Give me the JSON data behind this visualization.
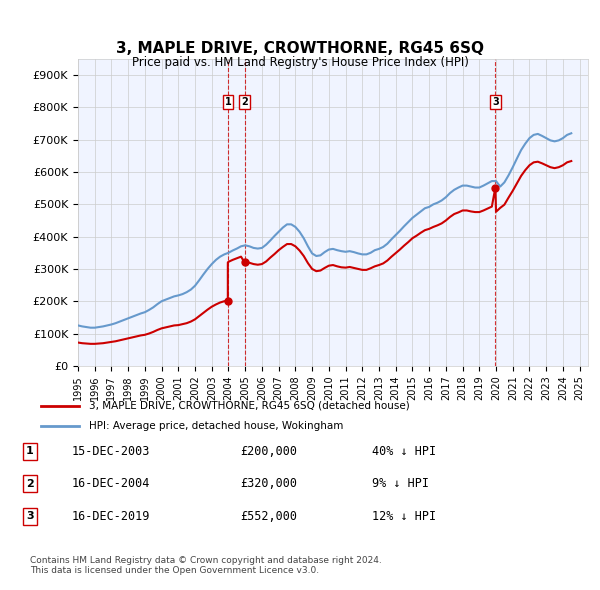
{
  "title": "3, MAPLE DRIVE, CROWTHORNE, RG45 6SQ",
  "subtitle": "Price paid vs. HM Land Registry's House Price Index (HPI)",
  "ylabel_ticks": [
    "£0",
    "£100K",
    "£200K",
    "£300K",
    "£400K",
    "£500K",
    "£600K",
    "£700K",
    "£800K",
    "£900K"
  ],
  "ytick_values": [
    0,
    100000,
    200000,
    300000,
    400000,
    500000,
    600000,
    700000,
    800000,
    900000
  ],
  "ylim": [
    0,
    950000
  ],
  "xlim_start": 1995.0,
  "xlim_end": 2025.5,
  "hpi_color": "#6699cc",
  "price_color": "#cc0000",
  "dashed_line_color": "#cc0000",
  "background_color": "#f0f4ff",
  "grid_color": "#cccccc",
  "transactions": [
    {
      "year": 2003.96,
      "price": 200000,
      "label": "1"
    },
    {
      "year": 2004.96,
      "price": 320000,
      "label": "2"
    },
    {
      "year": 2019.96,
      "price": 552000,
      "label": "3"
    }
  ],
  "legend_property_label": "3, MAPLE DRIVE, CROWTHORNE, RG45 6SQ (detached house)",
  "legend_hpi_label": "HPI: Average price, detached house, Wokingham",
  "table_rows": [
    {
      "num": "1",
      "date": "15-DEC-2003",
      "price": "£200,000",
      "change": "40% ↓ HPI"
    },
    {
      "num": "2",
      "date": "16-DEC-2004",
      "price": "£320,000",
      "change": "9% ↓ HPI"
    },
    {
      "num": "3",
      "date": "16-DEC-2019",
      "price": "£552,000",
      "change": "12% ↓ HPI"
    }
  ],
  "footnote": "Contains HM Land Registry data © Crown copyright and database right 2024.\nThis data is licensed under the Open Government Licence v3.0.",
  "hpi_data_x": [
    1995.0,
    1995.25,
    1995.5,
    1995.75,
    1996.0,
    1996.25,
    1996.5,
    1996.75,
    1997.0,
    1997.25,
    1997.5,
    1997.75,
    1998.0,
    1998.25,
    1998.5,
    1998.75,
    1999.0,
    1999.25,
    1999.5,
    1999.75,
    2000.0,
    2000.25,
    2000.5,
    2000.75,
    2001.0,
    2001.25,
    2001.5,
    2001.75,
    2002.0,
    2002.25,
    2002.5,
    2002.75,
    2003.0,
    2003.25,
    2003.5,
    2003.75,
    2004.0,
    2004.25,
    2004.5,
    2004.75,
    2005.0,
    2005.25,
    2005.5,
    2005.75,
    2006.0,
    2006.25,
    2006.5,
    2006.75,
    2007.0,
    2007.25,
    2007.5,
    2007.75,
    2008.0,
    2008.25,
    2008.5,
    2008.75,
    2009.0,
    2009.25,
    2009.5,
    2009.75,
    2010.0,
    2010.25,
    2010.5,
    2010.75,
    2011.0,
    2011.25,
    2011.5,
    2011.75,
    2012.0,
    2012.25,
    2012.5,
    2012.75,
    2013.0,
    2013.25,
    2013.5,
    2013.75,
    2014.0,
    2014.25,
    2014.5,
    2014.75,
    2015.0,
    2015.25,
    2015.5,
    2015.75,
    2016.0,
    2016.25,
    2016.5,
    2016.75,
    2017.0,
    2017.25,
    2017.5,
    2017.75,
    2018.0,
    2018.25,
    2018.5,
    2018.75,
    2019.0,
    2019.25,
    2019.5,
    2019.75,
    2020.0,
    2020.25,
    2020.5,
    2020.75,
    2021.0,
    2021.25,
    2021.5,
    2021.75,
    2022.0,
    2022.25,
    2022.5,
    2022.75,
    2023.0,
    2023.25,
    2023.5,
    2023.75,
    2024.0,
    2024.25,
    2024.5
  ],
  "hpi_data_y": [
    125000,
    122000,
    120000,
    118000,
    118000,
    120000,
    122000,
    125000,
    128000,
    132000,
    137000,
    142000,
    147000,
    152000,
    157000,
    162000,
    166000,
    173000,
    181000,
    191000,
    200000,
    205000,
    210000,
    215000,
    218000,
    222000,
    228000,
    236000,
    248000,
    265000,
    283000,
    300000,
    315000,
    328000,
    338000,
    345000,
    350000,
    357000,
    363000,
    370000,
    373000,
    370000,
    365000,
    363000,
    365000,
    375000,
    388000,
    402000,
    415000,
    428000,
    438000,
    438000,
    430000,
    415000,
    395000,
    370000,
    348000,
    340000,
    342000,
    352000,
    360000,
    362000,
    358000,
    355000,
    353000,
    355000,
    352000,
    348000,
    345000,
    345000,
    350000,
    358000,
    362000,
    368000,
    378000,
    392000,
    405000,
    418000,
    432000,
    445000,
    458000,
    468000,
    478000,
    488000,
    492000,
    500000,
    505000,
    512000,
    522000,
    535000,
    545000,
    552000,
    558000,
    558000,
    555000,
    552000,
    552000,
    558000,
    565000,
    572000,
    572000,
    555000,
    568000,
    590000,
    615000,
    642000,
    668000,
    688000,
    705000,
    715000,
    718000,
    712000,
    705000,
    698000,
    695000,
    698000,
    705000,
    715000,
    720000
  ],
  "price_line_x": [
    1995.0,
    1995.25,
    1995.5,
    1995.75,
    1996.0,
    1996.25,
    1996.5,
    1996.75,
    1997.0,
    1997.25,
    1997.5,
    1997.75,
    1998.0,
    1998.25,
    1998.5,
    1998.75,
    1999.0,
    1999.25,
    1999.5,
    1999.75,
    2000.0,
    2000.25,
    2000.5,
    2000.75,
    2001.0,
    2001.25,
    2001.5,
    2001.75,
    2002.0,
    2002.25,
    2002.5,
    2002.75,
    2003.0,
    2003.25,
    2003.5,
    2003.75,
    2003.96,
    2003.96,
    2004.0,
    2004.25,
    2004.5,
    2004.75,
    2004.96,
    2004.96,
    2005.0,
    2005.25,
    2005.5,
    2005.75,
    2006.0,
    2006.25,
    2006.5,
    2006.75,
    2007.0,
    2007.25,
    2007.5,
    2007.75,
    2008.0,
    2008.25,
    2008.5,
    2008.75,
    2009.0,
    2009.25,
    2009.5,
    2009.75,
    2010.0,
    2010.25,
    2010.5,
    2010.75,
    2011.0,
    2011.25,
    2011.5,
    2011.75,
    2012.0,
    2012.25,
    2012.5,
    2012.75,
    2013.0,
    2013.25,
    2013.5,
    2013.75,
    2014.0,
    2014.25,
    2014.5,
    2014.75,
    2015.0,
    2015.25,
    2015.5,
    2015.75,
    2016.0,
    2016.25,
    2016.5,
    2016.75,
    2017.0,
    2017.25,
    2017.5,
    2017.75,
    2018.0,
    2018.25,
    2018.5,
    2018.75,
    2019.0,
    2019.25,
    2019.5,
    2019.75,
    2019.96,
    2019.96,
    2020.0,
    2020.25,
    2020.5,
    2020.75,
    2021.0,
    2021.25,
    2021.5,
    2021.75,
    2022.0,
    2022.25,
    2022.5,
    2022.75,
    2023.0,
    2023.25,
    2023.5,
    2023.75,
    2024.0,
    2024.25,
    2024.5
  ],
  "price_line_y": [
    72000,
    70000,
    69000,
    68000,
    68000,
    69000,
    70000,
    72000,
    74000,
    76000,
    79000,
    82000,
    85000,
    88000,
    91000,
    94000,
    96000,
    100000,
    105000,
    111000,
    116000,
    119000,
    122000,
    125000,
    126000,
    129000,
    132000,
    137000,
    144000,
    154000,
    164000,
    174000,
    183000,
    190000,
    196000,
    200000,
    200000,
    320000,
    322000,
    328000,
    333000,
    338000,
    320000,
    320000,
    322000,
    319000,
    315000,
    313000,
    315000,
    323000,
    335000,
    346000,
    358000,
    368000,
    377000,
    377000,
    370000,
    357000,
    340000,
    318000,
    300000,
    293000,
    295000,
    303000,
    310000,
    312000,
    308000,
    305000,
    304000,
    306000,
    303000,
    300000,
    297000,
    297000,
    302000,
    308000,
    312000,
    317000,
    326000,
    338000,
    349000,
    360000,
    372000,
    383000,
    395000,
    403000,
    412000,
    420000,
    424000,
    430000,
    435000,
    441000,
    450000,
    461000,
    470000,
    475000,
    481000,
    481000,
    478000,
    476000,
    476000,
    481000,
    487000,
    493000,
    552000,
    552000,
    477000,
    489000,
    499000,
    521000,
    542000,
    565000,
    588000,
    606000,
    621000,
    630000,
    632000,
    627000,
    621000,
    615000,
    612000,
    615000,
    621000,
    630000,
    634000
  ]
}
